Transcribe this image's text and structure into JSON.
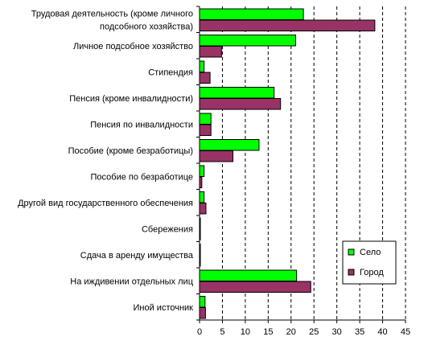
{
  "chart_data": {
    "type": "bar",
    "orientation": "horizontal",
    "categories": [
      [
        "Трудовая деятельность (кроме личного",
        "подсобного хозяйства)"
      ],
      [
        "Личное подсобное хозяйство"
      ],
      [
        "Стипендия"
      ],
      [
        "Пенсия (кроме инвалидности)"
      ],
      [
        "Пенсия по инвалидности"
      ],
      [
        "Пособие (кроме безработицы)"
      ],
      [
        "Пособие по безработице"
      ],
      [
        "Другой вид государственного обеспечения"
      ],
      [
        "Сбережения"
      ],
      [
        "Сдача в аренду имущества"
      ],
      [
        "На иждивении отдельных лиц"
      ],
      [
        "Иной источник"
      ]
    ],
    "series": [
      {
        "name": "Село",
        "color": "#00ff00",
        "values": [
          22.7,
          21.0,
          1.0,
          16.3,
          2.5,
          13.0,
          1.0,
          1.0,
          0.1,
          0.1,
          21.2,
          1.2
        ]
      },
      {
        "name": "Город",
        "color": "#993366",
        "values": [
          38.3,
          4.8,
          2.3,
          17.7,
          2.5,
          7.3,
          0.5,
          1.4,
          0.1,
          0.1,
          24.3,
          1.3
        ]
      }
    ],
    "xlim": [
      0,
      45
    ],
    "xticks": [
      0,
      5,
      10,
      15,
      20,
      25,
      30,
      35,
      40,
      45
    ],
    "grid": "vertical dashed",
    "legend_position": "right"
  }
}
